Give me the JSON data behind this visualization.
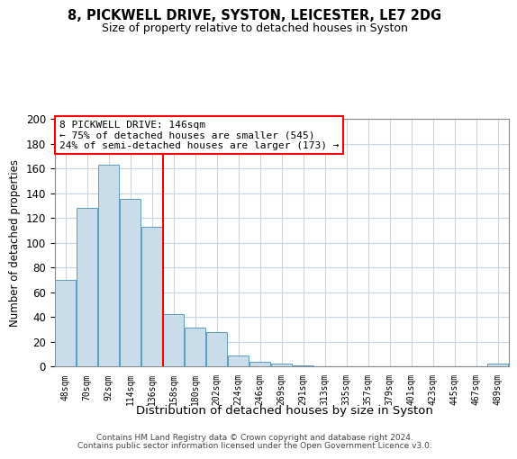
{
  "title": "8, PICKWELL DRIVE, SYSTON, LEICESTER, LE7 2DG",
  "subtitle": "Size of property relative to detached houses in Syston",
  "xlabel": "Distribution of detached houses by size in Syston",
  "ylabel": "Number of detached properties",
  "bar_labels": [
    "48sqm",
    "70sqm",
    "92sqm",
    "114sqm",
    "136sqm",
    "158sqm",
    "180sqm",
    "202sqm",
    "224sqm",
    "246sqm",
    "269sqm",
    "291sqm",
    "313sqm",
    "335sqm",
    "357sqm",
    "379sqm",
    "401sqm",
    "423sqm",
    "445sqm",
    "467sqm",
    "489sqm"
  ],
  "bar_values": [
    70,
    128,
    163,
    135,
    113,
    42,
    31,
    28,
    9,
    4,
    2,
    1,
    0,
    0,
    0,
    0,
    0,
    0,
    0,
    0,
    2
  ],
  "bar_color": "#c8dcea",
  "bar_edgecolor": "#5a9dc0",
  "vline_x": 4.5,
  "vline_color": "red",
  "annotation_title": "8 PICKWELL DRIVE: 146sqm",
  "annotation_line1": "← 75% of detached houses are smaller (545)",
  "annotation_line2": "24% of semi-detached houses are larger (173) →",
  "annotation_box_color": "white",
  "annotation_box_edgecolor": "red",
  "ylim": [
    0,
    200
  ],
  "yticks": [
    0,
    20,
    40,
    60,
    80,
    100,
    120,
    140,
    160,
    180,
    200
  ],
  "footer1": "Contains HM Land Registry data © Crown copyright and database right 2024.",
  "footer2": "Contains public sector information licensed under the Open Government Licence v3.0.",
  "background_color": "white",
  "grid_color": "#c8d4e0"
}
